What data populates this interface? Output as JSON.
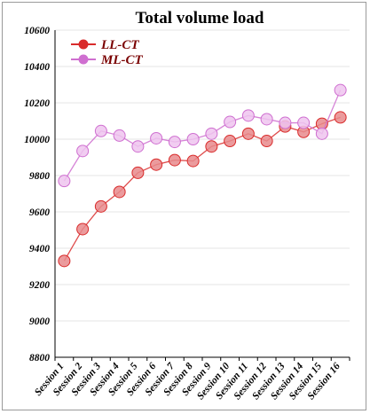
{
  "chart_data": {
    "type": "line",
    "title": "Total volume load",
    "xlabel": "",
    "ylabel": "",
    "ylim": [
      8800,
      10600
    ],
    "yticks": [
      8800,
      9000,
      9200,
      9400,
      9600,
      9800,
      10000,
      10200,
      10400,
      10600
    ],
    "grid": true,
    "legend_position": "top-left",
    "categories": [
      "Session 1",
      "Session 2",
      "Session 3",
      "Session 4",
      "Session 5",
      "Session 6",
      "Session 7",
      "Session 8",
      "Session 9",
      "Session 10",
      "Session 11",
      "Session 12",
      "Session 13",
      "Session 14",
      "Session 15",
      "Session 16"
    ],
    "series": [
      {
        "name": "LL-CT",
        "color": "#d92b2b",
        "marker_fill": "#e8898c",
        "values": [
          9330,
          9505,
          9630,
          9710,
          9815,
          9860,
          9885,
          9880,
          9960,
          9990,
          10030,
          9990,
          10070,
          10040,
          10085,
          10120
        ]
      },
      {
        "name": "ML-CT",
        "color": "#cf6fd0",
        "marker_fill": "#efc4ee",
        "values": [
          9770,
          9935,
          10045,
          10020,
          9960,
          10005,
          9985,
          10000,
          10030,
          10095,
          10130,
          10110,
          10090,
          10090,
          10030,
          10270
        ]
      }
    ]
  }
}
